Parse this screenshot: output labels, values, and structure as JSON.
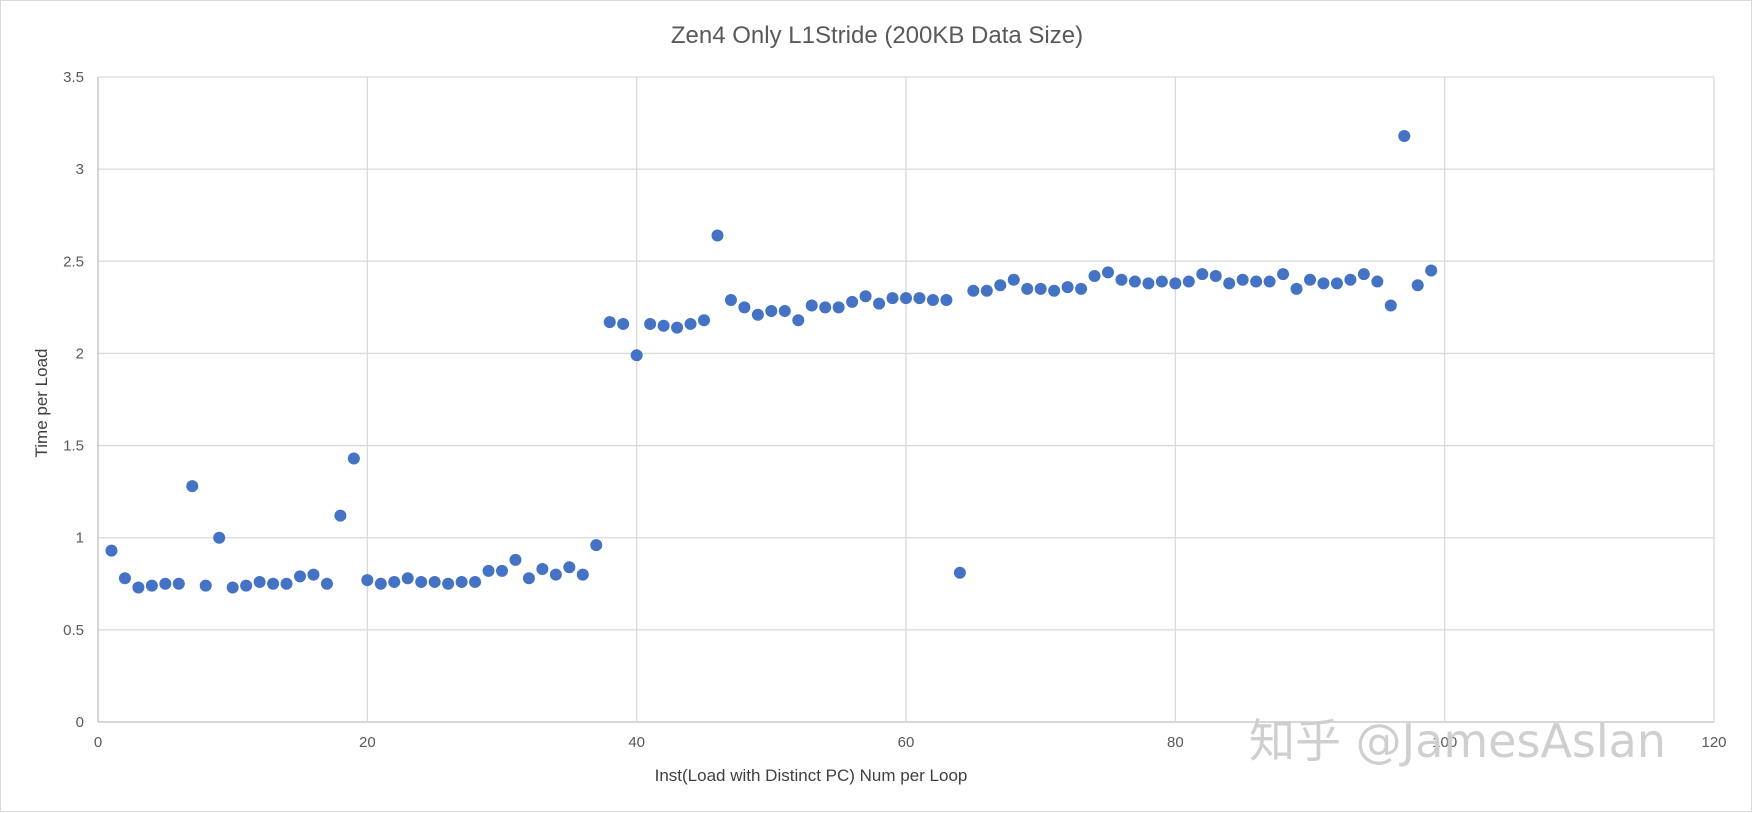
{
  "chart_data": {
    "type": "scatter",
    "title": "Zen4 Only L1Stride (200KB Data Size)",
    "xlabel": "Inst(Load with Distinct PC) Num per Loop",
    "ylabel": "Time per Load",
    "xlim": [
      0,
      120
    ],
    "ylim": [
      0,
      3.5
    ],
    "xticks": [
      "0",
      "20",
      "40",
      "60",
      "80",
      "100",
      "120"
    ],
    "yticks": [
      "0",
      "0.5",
      "1",
      "1.5",
      "2",
      "2.5",
      "3",
      "3.5"
    ],
    "grid": true,
    "marker_color": "#4472C4",
    "x": [
      1,
      2,
      3,
      4,
      5,
      6,
      7,
      8,
      9,
      10,
      11,
      12,
      13,
      14,
      15,
      16,
      17,
      18,
      19,
      20,
      21,
      22,
      23,
      24,
      25,
      26,
      27,
      28,
      29,
      30,
      31,
      32,
      33,
      34,
      35,
      36,
      37,
      38,
      39,
      40,
      41,
      42,
      43,
      44,
      45,
      46,
      47,
      48,
      49,
      50,
      51,
      52,
      53,
      54,
      55,
      56,
      57,
      58,
      59,
      60,
      61,
      62,
      63,
      64,
      65,
      66,
      67,
      68,
      69,
      70,
      71,
      72,
      73,
      74,
      75,
      76,
      77,
      78,
      79,
      80,
      81,
      82,
      83,
      84,
      85,
      86,
      87,
      88,
      89,
      90,
      91,
      92,
      93,
      94,
      95,
      96,
      97,
      98,
      99
    ],
    "y": [
      0.93,
      0.78,
      0.73,
      0.74,
      0.75,
      0.75,
      1.28,
      0.74,
      1.0,
      0.73,
      0.74,
      0.76,
      0.75,
      0.75,
      0.79,
      0.8,
      0.75,
      1.12,
      1.43,
      0.77,
      0.75,
      0.76,
      0.78,
      0.76,
      0.76,
      0.75,
      0.76,
      0.76,
      0.82,
      0.82,
      0.88,
      0.78,
      0.83,
      0.8,
      0.84,
      0.8,
      0.96,
      2.17,
      2.16,
      1.99,
      2.16,
      2.15,
      2.14,
      2.16,
      2.18,
      2.64,
      2.29,
      2.25,
      2.21,
      2.23,
      2.23,
      2.18,
      2.26,
      2.25,
      2.25,
      2.28,
      2.31,
      2.27,
      2.3,
      2.3,
      2.3,
      2.29,
      2.29,
      0.81,
      2.34,
      2.34,
      2.37,
      2.4,
      2.35,
      2.35,
      2.34,
      2.36,
      2.35,
      2.42,
      2.44,
      2.4,
      2.39,
      2.38,
      2.39,
      2.38,
      2.39,
      2.43,
      2.42,
      2.38,
      2.4,
      2.39,
      2.39,
      2.43,
      2.35,
      2.4,
      2.38,
      2.38,
      2.4,
      2.43,
      2.39,
      2.26,
      3.18,
      2.37,
      2.45
    ]
  },
  "watermark": {
    "text": "知乎 @JamesAslan"
  }
}
